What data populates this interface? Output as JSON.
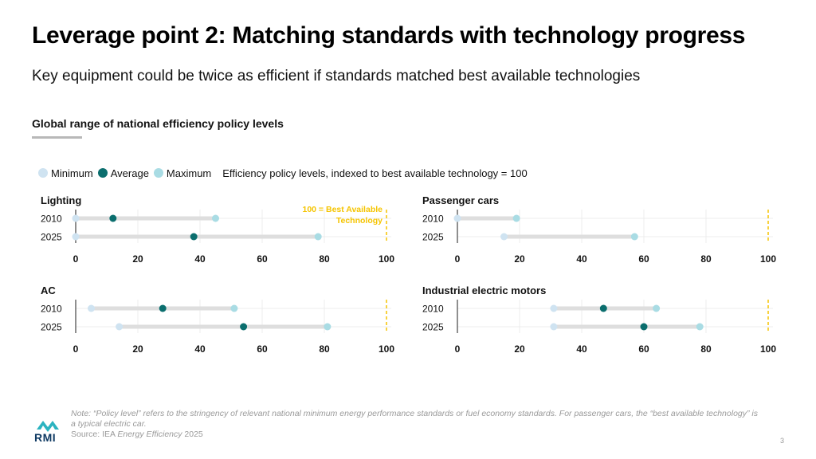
{
  "header": {
    "title": "Leverage point 2: Matching standards with technology progress",
    "subtitle": "Key equipment could be twice as efficient if standards matched best available technologies"
  },
  "section": {
    "title": "Global range of national efficiency policy levels"
  },
  "legend": {
    "items": [
      {
        "label": "Minimum",
        "color": "#cfe3f1"
      },
      {
        "label": "Average",
        "color": "#0b6e6e"
      },
      {
        "label": "Maximum",
        "color": "#a9dce4"
      }
    ],
    "note": "Efficiency policy levels, indexed to best available technology = 100"
  },
  "colors": {
    "minimum": "#cfe3f1",
    "average": "#0b6e6e",
    "maximum": "#a9dce4",
    "range_bar": "#dedede",
    "reference_line": "#f5c400",
    "gridline": "#ececec"
  },
  "chart_data": [
    {
      "type": "dot-range",
      "title": "Lighting",
      "categories": [
        "2010",
        "2025"
      ],
      "series": [
        {
          "name": "Minimum",
          "values": [
            0,
            0
          ]
        },
        {
          "name": "Average",
          "values": [
            12,
            38
          ]
        },
        {
          "name": "Maximum",
          "values": [
            45,
            78
          ]
        }
      ],
      "xlim": [
        0,
        100
      ],
      "xticks": [
        0,
        20,
        40,
        60,
        80,
        100
      ],
      "reference_line": {
        "value": 100,
        "label": "100 = Best Available Technology"
      }
    },
    {
      "type": "dot-range",
      "title": "Passenger cars",
      "categories": [
        "2010",
        "2025"
      ],
      "series": [
        {
          "name": "Minimum",
          "values": [
            0,
            15
          ]
        },
        {
          "name": "Average",
          "values": [
            null,
            null
          ]
        },
        {
          "name": "Maximum",
          "values": [
            19,
            57
          ]
        }
      ],
      "xlim": [
        0,
        100
      ],
      "xticks": [
        0,
        20,
        40,
        60,
        80,
        100
      ],
      "reference_line": {
        "value": 100,
        "label": ""
      }
    },
    {
      "type": "dot-range",
      "title": "AC",
      "categories": [
        "2010",
        "2025"
      ],
      "series": [
        {
          "name": "Minimum",
          "values": [
            5,
            14
          ]
        },
        {
          "name": "Average",
          "values": [
            28,
            54
          ]
        },
        {
          "name": "Maximum",
          "values": [
            51,
            81
          ]
        }
      ],
      "xlim": [
        0,
        100
      ],
      "xticks": [
        0,
        20,
        40,
        60,
        80,
        100
      ],
      "reference_line": {
        "value": 100,
        "label": ""
      }
    },
    {
      "type": "dot-range",
      "title": "Industrial electric motors",
      "categories": [
        "2010",
        "2025"
      ],
      "series": [
        {
          "name": "Minimum",
          "values": [
            31,
            31
          ]
        },
        {
          "name": "Average",
          "values": [
            47,
            60
          ]
        },
        {
          "name": "Maximum",
          "values": [
            64,
            78
          ]
        }
      ],
      "xlim": [
        0,
        100
      ],
      "xticks": [
        0,
        20,
        40,
        60,
        80,
        100
      ],
      "reference_line": {
        "value": 100,
        "label": ""
      }
    }
  ],
  "footer": {
    "logo_text": "RMI",
    "note": "Note: “Policy level” refers to the stringency of relevant national minimum energy performance standards or fuel economy standards. For passenger cars, the “best available technology” is a typical electric car.",
    "source_prefix": "Source: IEA ",
    "source_title": "Energy Efficiency",
    "source_suffix": " 2025",
    "page_number": "3"
  }
}
